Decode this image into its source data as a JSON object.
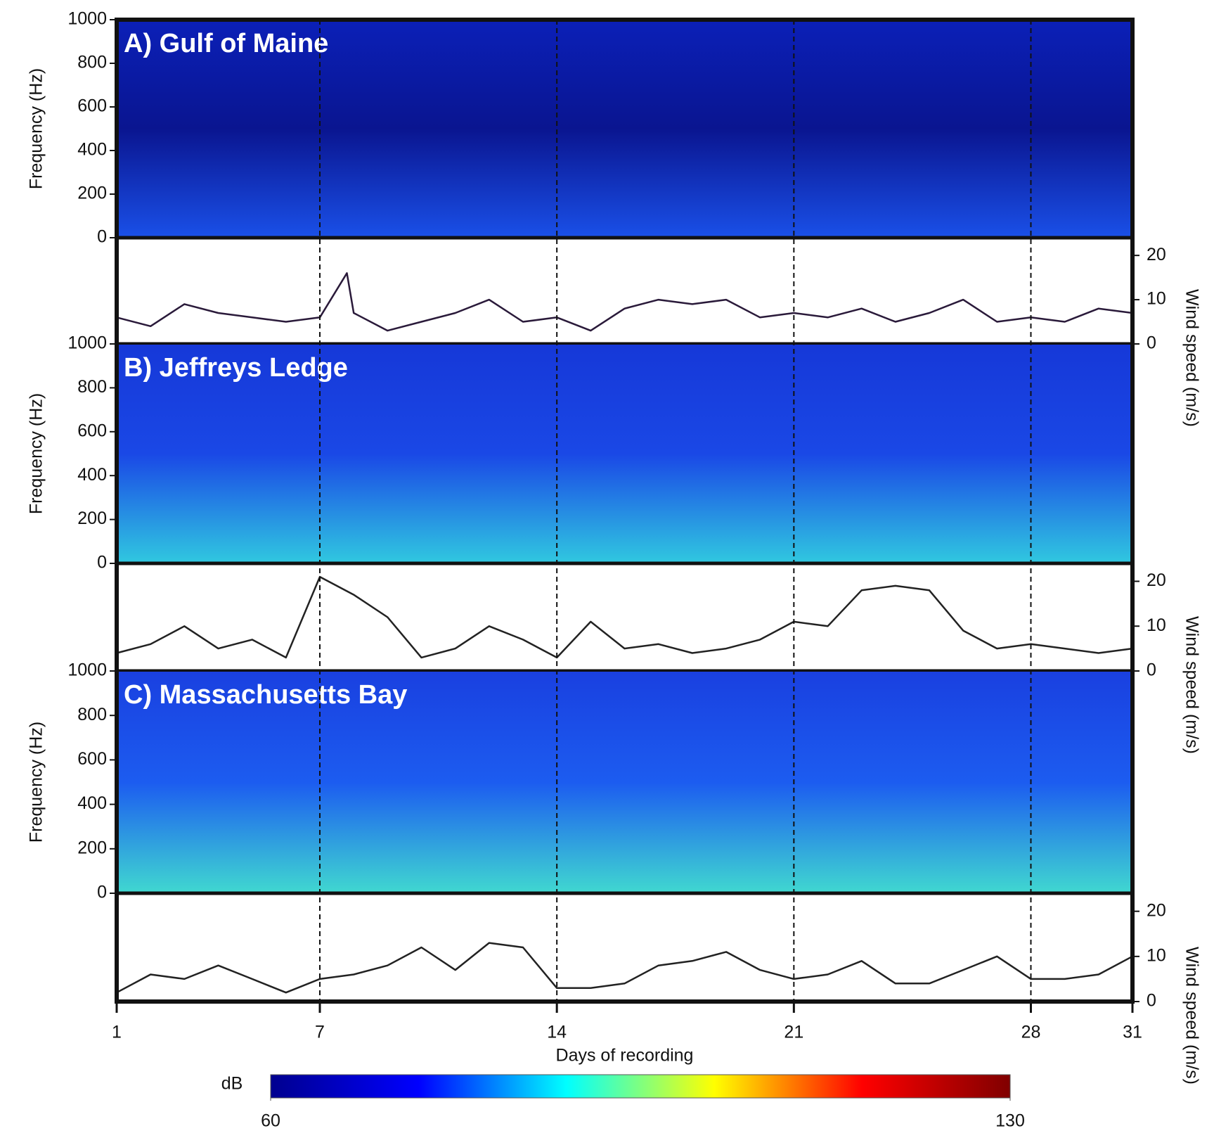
{
  "chart_data": [
    {
      "type": "spectrogram",
      "title": "A) Gulf of Maine",
      "ylabel": "Frequency (Hz)",
      "xlim": [
        1,
        31
      ],
      "ylim": [
        0,
        1000
      ],
      "yticks": [
        0,
        200,
        400,
        600,
        800,
        1000
      ],
      "colors": [
        "#0b20b8",
        "#0a1590",
        "#1a50e8"
      ]
    },
    {
      "type": "line",
      "ylabel": "Wind speed (m/s)",
      "xlim": [
        1,
        31
      ],
      "ylim": [
        0,
        24
      ],
      "yticks": [
        0,
        10,
        20
      ],
      "color": "#2a1a3a",
      "x": [
        1,
        2,
        3,
        4,
        5,
        6,
        7,
        7.8,
        8,
        9,
        10,
        11,
        12,
        13,
        14,
        15,
        16,
        17,
        18,
        19,
        20,
        21,
        22,
        23,
        24,
        25,
        26,
        27,
        28,
        29,
        30,
        31
      ],
      "values": [
        6,
        4,
        9,
        7,
        6,
        5,
        6,
        16,
        7,
        3,
        5,
        7,
        10,
        5,
        6,
        3,
        8,
        10,
        9,
        10,
        6,
        7,
        6,
        8,
        5,
        7,
        10,
        5,
        6,
        5,
        8,
        7
      ]
    },
    {
      "type": "spectrogram",
      "title": "B) Jeffreys Ledge",
      "ylabel": "Frequency (Hz)",
      "xlim": [
        1,
        31
      ],
      "ylim": [
        0,
        1000
      ],
      "yticks": [
        0,
        200,
        400,
        600,
        800,
        1000
      ],
      "colors": [
        "#1638d8",
        "#1a48e6",
        "#30c8e0"
      ]
    },
    {
      "type": "line",
      "ylabel": "Wind speed (m/s)",
      "xlim": [
        1,
        31
      ],
      "ylim": [
        0,
        24
      ],
      "yticks": [
        0,
        10,
        20
      ],
      "color": "#222222",
      "x": [
        1,
        2,
        3,
        4,
        5,
        6,
        7,
        8,
        9,
        10,
        11,
        12,
        13,
        14,
        15,
        16,
        17,
        18,
        19,
        20,
        21,
        22,
        23,
        24,
        25,
        26,
        27,
        28,
        29,
        30,
        31
      ],
      "values": [
        4,
        6,
        10,
        5,
        7,
        3,
        21,
        17,
        12,
        3,
        5,
        10,
        7,
        3,
        11,
        5,
        6,
        4,
        5,
        7,
        11,
        10,
        18,
        19,
        18,
        9,
        5,
        6,
        5,
        4,
        5
      ]
    },
    {
      "type": "spectrogram",
      "title": "C) Massachusetts Bay",
      "ylabel": "Frequency (Hz)",
      "xlim": [
        1,
        31
      ],
      "ylim": [
        0,
        1000
      ],
      "yticks": [
        0,
        200,
        400,
        600,
        800,
        1000
      ],
      "colors": [
        "#1a40e0",
        "#1c5cf0",
        "#40d8d0"
      ]
    },
    {
      "type": "line",
      "ylabel": "Wind speed (m/s)",
      "xlim": [
        1,
        31
      ],
      "ylim": [
        0,
        24
      ],
      "yticks": [
        0,
        10,
        20
      ],
      "color": "#222222",
      "x": [
        1,
        2,
        3,
        4,
        5,
        6,
        7,
        8,
        9,
        10,
        11,
        12,
        13,
        14,
        15,
        16,
        17,
        18,
        19,
        20,
        21,
        22,
        23,
        24,
        25,
        26,
        27,
        28,
        29,
        30,
        31
      ],
      "values": [
        2,
        6,
        5,
        8,
        5,
        2,
        5,
        6,
        8,
        12,
        7,
        13,
        12,
        3,
        3,
        4,
        8,
        9,
        11,
        7,
        5,
        6,
        9,
        4,
        4,
        7,
        10,
        5,
        5,
        6,
        10
      ],
      "xlabel": "Days of recording",
      "xticks": [
        1,
        7,
        14,
        21,
        28,
        31
      ],
      "vlines": [
        7,
        14,
        21,
        28
      ]
    },
    {
      "type": "colorbar",
      "label": "dB",
      "lim": [
        60,
        130
      ],
      "ticks": [
        60,
        130
      ],
      "colors": [
        "#00008f",
        "#0000ff",
        "#00ffff",
        "#ffff00",
        "#ff0000",
        "#800000"
      ]
    }
  ]
}
